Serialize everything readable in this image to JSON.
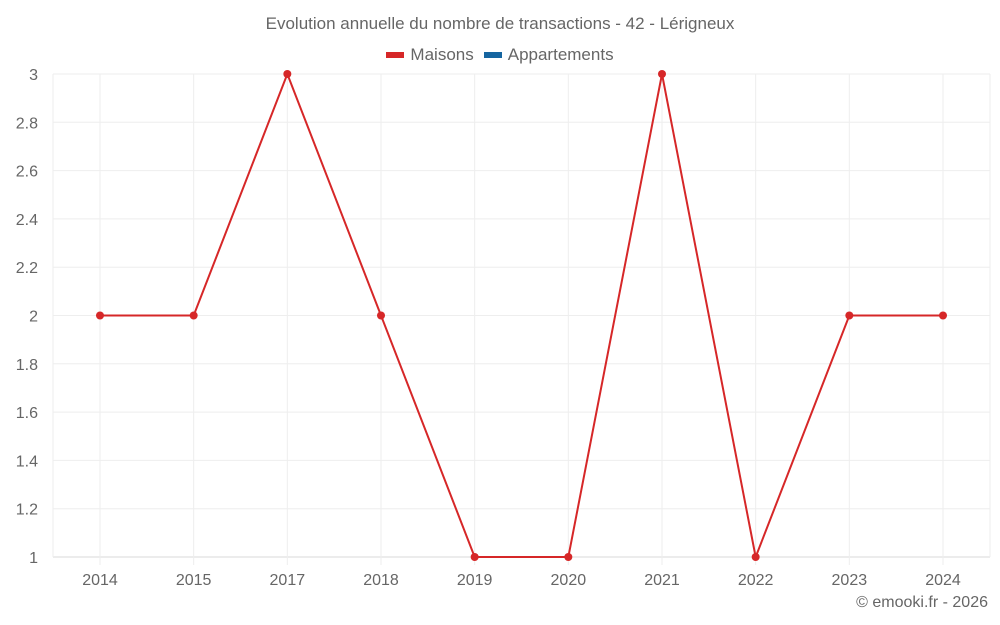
{
  "title": "Evolution annuelle du nombre de transactions - 42 - Lérigneux",
  "legend": [
    {
      "label": "Maisons",
      "color": "#d62728"
    },
    {
      "label": "Appartements",
      "color": "#1565a0"
    }
  ],
  "credit": "© emooki.fr - 2026",
  "chart_data": {
    "type": "line",
    "title": "Evolution annuelle du nombre de transactions - 42 - Lérigneux",
    "xlabel": "",
    "ylabel": "",
    "categories": [
      "2014",
      "2015",
      "2017",
      "2018",
      "2019",
      "2020",
      "2021",
      "2022",
      "2023",
      "2024"
    ],
    "series": [
      {
        "name": "Maisons",
        "color": "#d62728",
        "values": [
          2,
          2,
          3,
          2,
          1,
          1,
          3,
          1,
          2,
          2
        ]
      },
      {
        "name": "Appartements",
        "color": "#1565a0",
        "values": []
      }
    ],
    "yticks": [
      1,
      1.2,
      1.4,
      1.6,
      1.8,
      2,
      2.2,
      2.4,
      2.6,
      2.8,
      3
    ],
    "ylim": [
      1,
      3
    ],
    "grid": true,
    "legend_position": "top"
  }
}
